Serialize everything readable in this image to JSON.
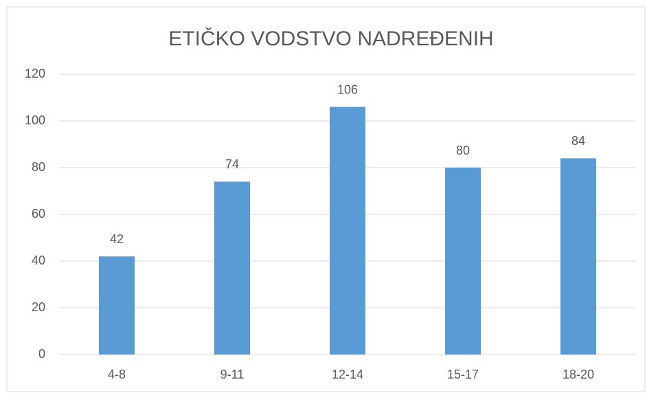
{
  "chart_data": {
    "type": "bar",
    "title": "ETIČKO VODSTVO NADREĐENIH",
    "categories": [
      "4-8",
      "9-11",
      "12-14",
      "15-17",
      "18-20"
    ],
    "values": [
      42,
      74,
      106,
      80,
      84
    ],
    "color": "#5b9bd5",
    "ylim": [
      0,
      120
    ],
    "yticks": [
      0,
      20,
      40,
      60,
      80,
      100,
      120
    ],
    "grid": true
  }
}
